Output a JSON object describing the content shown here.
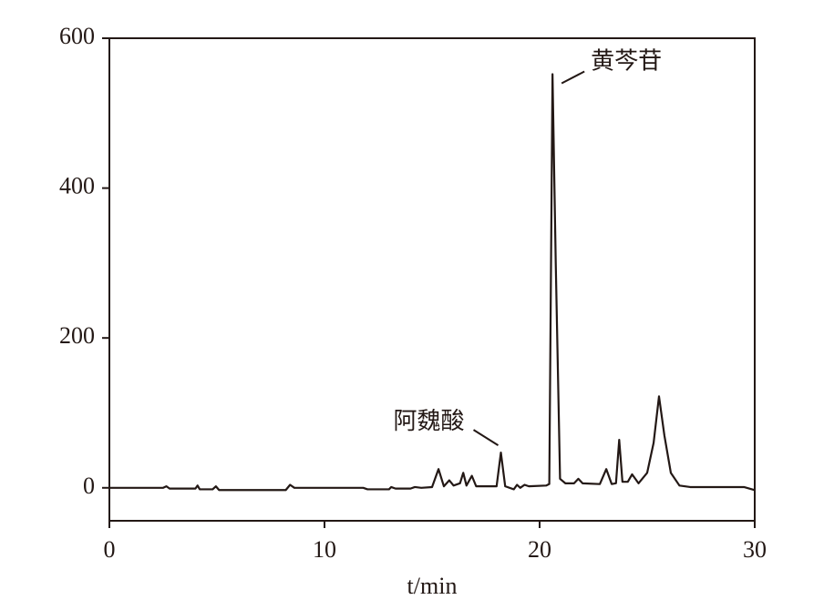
{
  "chart_data": {
    "type": "line",
    "x_label": "t/min",
    "x": [
      0,
      2.5,
      2.65,
      2.8,
      4,
      4.1,
      4.2,
      4.8,
      4.95,
      5.1,
      8.2,
      8.4,
      8.6,
      9.5,
      11.8,
      12,
      13,
      13.1,
      13.3,
      14,
      14.2,
      14.5,
      15,
      15.3,
      15.55,
      15.8,
      16,
      16.3,
      16.45,
      16.6,
      16.85,
      17.05,
      18,
      18.2,
      18.4,
      18.8,
      18.95,
      19.1,
      19.3,
      19.5,
      20.3,
      20.45,
      20.6,
      20.75,
      20.95,
      21.2,
      21.6,
      21.8,
      22,
      22.8,
      23.1,
      23.35,
      23.55,
      23.7,
      23.85,
      24.1,
      24.3,
      24.6,
      25,
      25.3,
      25.55,
      25.8,
      26.1,
      26.5,
      27,
      29.5,
      30
    ],
    "series": [
      {
        "color": "#231815",
        "values": [
          0,
          0,
          2,
          -1,
          -1,
          3,
          -2,
          -2,
          2,
          -3,
          -3,
          4,
          0,
          0,
          0,
          -2,
          -2,
          1,
          -1,
          -1,
          1,
          0,
          1,
          25,
          2,
          10,
          3,
          6,
          20,
          3,
          16,
          2,
          2,
          47,
          2,
          -2,
          4,
          0,
          4,
          2,
          3,
          5,
          552,
          300,
          12,
          6,
          6,
          12,
          6,
          5,
          25,
          5,
          6,
          64,
          8,
          8,
          18,
          6,
          20,
          60,
          122,
          70,
          20,
          3,
          1,
          1,
          -3
        ]
      }
    ],
    "xlim": [
      0,
      30
    ],
    "xticks": [
      0,
      10,
      20,
      30
    ],
    "ylim": [
      -44,
      600
    ],
    "yticks": [
      0,
      200,
      400,
      600
    ],
    "annotations": [
      {
        "text": "黄芩苷",
        "x": 20.6,
        "y": 552
      },
      {
        "text": "阿魏酸",
        "x": 18.2,
        "y": 47
      }
    ]
  }
}
